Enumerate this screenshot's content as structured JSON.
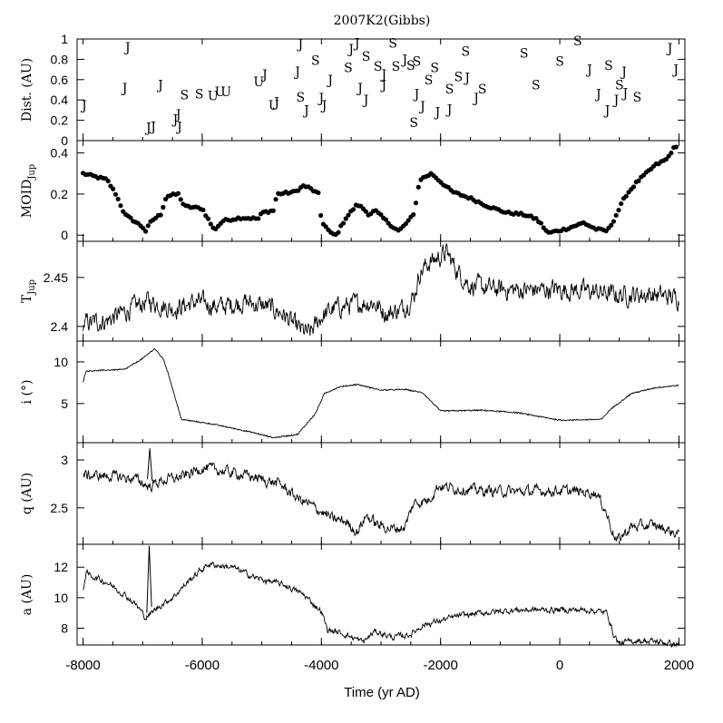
{
  "chart_data": [
    {
      "type": "scatter",
      "panel": "distance",
      "title": "2007K2(Gibbs)",
      "ylabel": "Dist. (AU)",
      "xlim": [
        -8100,
        2100
      ],
      "ylim": [
        0,
        1
      ],
      "yticks": [
        0,
        0.2,
        0.4,
        0.6,
        0.8,
        1
      ],
      "points": [
        {
          "x": -7980,
          "y": 0.35,
          "label": "J"
        },
        {
          "x": -7250,
          "y": 0.92,
          "label": "J"
        },
        {
          "x": -7300,
          "y": 0.52,
          "label": "J"
        },
        {
          "x": -6900,
          "y": 0.13,
          "label": "J"
        },
        {
          "x": -6820,
          "y": 0.14,
          "label": "J"
        },
        {
          "x": -6700,
          "y": 0.55,
          "label": "J"
        },
        {
          "x": -6450,
          "y": 0.21,
          "label": "J"
        },
        {
          "x": -6400,
          "y": 0.26,
          "label": "J"
        },
        {
          "x": -6380,
          "y": 0.14,
          "label": "J"
        },
        {
          "x": -6300,
          "y": 0.45,
          "label": "S"
        },
        {
          "x": -6050,
          "y": 0.46,
          "label": "S"
        },
        {
          "x": -5820,
          "y": 0.44,
          "label": "U"
        },
        {
          "x": -5700,
          "y": 0.48,
          "label": "U"
        },
        {
          "x": -5600,
          "y": 0.48,
          "label": "U"
        },
        {
          "x": -5050,
          "y": 0.58,
          "label": "U"
        },
        {
          "x": -4950,
          "y": 0.65,
          "label": "J"
        },
        {
          "x": -4800,
          "y": 0.35,
          "label": "U"
        },
        {
          "x": -4750,
          "y": 0.38,
          "label": "J"
        },
        {
          "x": -4350,
          "y": 0.95,
          "label": "J"
        },
        {
          "x": -4400,
          "y": 0.68,
          "label": "J"
        },
        {
          "x": -4350,
          "y": 0.43,
          "label": "S"
        },
        {
          "x": -4250,
          "y": 0.3,
          "label": "J"
        },
        {
          "x": -4100,
          "y": 0.79,
          "label": "S"
        },
        {
          "x": -4000,
          "y": 0.42,
          "label": "J"
        },
        {
          "x": -3950,
          "y": 0.35,
          "label": "J"
        },
        {
          "x": -3850,
          "y": 0.6,
          "label": "J"
        },
        {
          "x": -3550,
          "y": 0.72,
          "label": "S"
        },
        {
          "x": -3500,
          "y": 0.9,
          "label": "J"
        },
        {
          "x": -3400,
          "y": 0.96,
          "label": "J"
        },
        {
          "x": -3350,
          "y": 0.52,
          "label": "J"
        },
        {
          "x": -3250,
          "y": 0.4,
          "label": "J"
        },
        {
          "x": -3250,
          "y": 0.83,
          "label": "S"
        },
        {
          "x": -3050,
          "y": 0.73,
          "label": "S"
        },
        {
          "x": -2950,
          "y": 0.65,
          "label": "J"
        },
        {
          "x": -2950,
          "y": 0.55,
          "label": "J"
        },
        {
          "x": -2800,
          "y": 0.96,
          "label": "S"
        },
        {
          "x": -2750,
          "y": 0.73,
          "label": "S"
        },
        {
          "x": -2600,
          "y": 0.8,
          "label": "J"
        },
        {
          "x": -2500,
          "y": 0.74,
          "label": "S"
        },
        {
          "x": -2400,
          "y": 0.78,
          "label": "S"
        },
        {
          "x": -2450,
          "y": 0.18,
          "label": "S"
        },
        {
          "x": -2400,
          "y": 0.46,
          "label": "J"
        },
        {
          "x": -2300,
          "y": 0.34,
          "label": "J"
        },
        {
          "x": -2200,
          "y": 0.6,
          "label": "S"
        },
        {
          "x": -2100,
          "y": 0.72,
          "label": "S"
        },
        {
          "x": -2050,
          "y": 0.28,
          "label": "J"
        },
        {
          "x": -1850,
          "y": 0.51,
          "label": "S"
        },
        {
          "x": -1850,
          "y": 0.31,
          "label": "J"
        },
        {
          "x": -1700,
          "y": 0.63,
          "label": "S"
        },
        {
          "x": -1580,
          "y": 0.88,
          "label": "S"
        },
        {
          "x": -1550,
          "y": 0.62,
          "label": "J"
        },
        {
          "x": -1400,
          "y": 0.42,
          "label": "J"
        },
        {
          "x": -1300,
          "y": 0.51,
          "label": "S"
        },
        {
          "x": -600,
          "y": 0.86,
          "label": "S"
        },
        {
          "x": -400,
          "y": 0.55,
          "label": "S"
        },
        {
          "x": 0,
          "y": 0.78,
          "label": "S"
        },
        {
          "x": 300,
          "y": 0.98,
          "label": "S"
        },
        {
          "x": 500,
          "y": 0.7,
          "label": "J"
        },
        {
          "x": 650,
          "y": 0.46,
          "label": "J"
        },
        {
          "x": 800,
          "y": 0.3,
          "label": "J"
        },
        {
          "x": 820,
          "y": 0.74,
          "label": "S"
        },
        {
          "x": 950,
          "y": 0.4,
          "label": "J"
        },
        {
          "x": 1000,
          "y": 0.55,
          "label": "S"
        },
        {
          "x": 1100,
          "y": 0.47,
          "label": "J"
        },
        {
          "x": 1080,
          "y": 0.68,
          "label": "J"
        },
        {
          "x": 1300,
          "y": 0.43,
          "label": "S"
        },
        {
          "x": 1850,
          "y": 0.91,
          "label": "J"
        },
        {
          "x": 1950,
          "y": 0.7,
          "label": "J"
        }
      ]
    },
    {
      "type": "scatter",
      "panel": "moid",
      "ylabel": "MOID",
      "ylabel_sub": "Jup",
      "xlim": [
        -8100,
        2100
      ],
      "ylim": [
        -0.03,
        0.46
      ],
      "yticks": [
        0,
        0.2,
        0.4
      ],
      "knots": [
        [
          -8000,
          0.3
        ],
        [
          -7600,
          0.27
        ],
        [
          -7450,
          0.2
        ],
        [
          -7300,
          0.1
        ],
        [
          -7100,
          0.06
        ],
        [
          -7000,
          0.04
        ],
        [
          -6950,
          0.02
        ],
        [
          -6850,
          0.07
        ],
        [
          -6700,
          0.1
        ],
        [
          -6600,
          0.19
        ],
        [
          -6400,
          0.2
        ],
        [
          -6300,
          0.14
        ],
        [
          -6000,
          0.13
        ],
        [
          -5800,
          0.025
        ],
        [
          -5650,
          0.07
        ],
        [
          -5350,
          0.085
        ],
        [
          -5050,
          0.08
        ],
        [
          -5000,
          0.11
        ],
        [
          -4800,
          0.12
        ],
        [
          -4750,
          0.2
        ],
        [
          -4450,
          0.21
        ],
        [
          -4300,
          0.24
        ],
        [
          -4200,
          0.23
        ],
        [
          -4050,
          0.2
        ],
        [
          -4000,
          0.07
        ],
        [
          -3850,
          0.01
        ],
        [
          -3750,
          0.0
        ],
        [
          -3600,
          0.08
        ],
        [
          -3400,
          0.15
        ],
        [
          -3300,
          0.13
        ],
        [
          -3200,
          0.1
        ],
        [
          -3100,
          0.12
        ],
        [
          -2950,
          0.08
        ],
        [
          -2800,
          0.04
        ],
        [
          -2700,
          0.02
        ],
        [
          -2600,
          0.05
        ],
        [
          -2450,
          0.1
        ],
        [
          -2350,
          0.27
        ],
        [
          -2150,
          0.3
        ],
        [
          -2000,
          0.26
        ],
        [
          -1800,
          0.21
        ],
        [
          -1500,
          0.18
        ],
        [
          -1200,
          0.14
        ],
        [
          -900,
          0.11
        ],
        [
          -600,
          0.1
        ],
        [
          -400,
          0.08
        ],
        [
          -300,
          0.05
        ],
        [
          -200,
          0.01
        ],
        [
          100,
          0.03
        ],
        [
          400,
          0.06
        ],
        [
          600,
          0.03
        ],
        [
          800,
          0.02
        ],
        [
          900,
          0.07
        ],
        [
          1100,
          0.19
        ],
        [
          1300,
          0.26
        ],
        [
          1600,
          0.34
        ],
        [
          1800,
          0.37
        ],
        [
          1900,
          0.42
        ],
        [
          1990,
          0.43
        ]
      ]
    },
    {
      "type": "line",
      "panel": "tjup",
      "ylabel": "T",
      "ylabel_sub": "Jup",
      "xlim": [
        -8100,
        2100
      ],
      "ylim": [
        2.385,
        2.487
      ],
      "yticks": [
        2.4,
        2.45
      ],
      "knots": [
        [
          -8000,
          2.403
        ],
        [
          -7600,
          2.406
        ],
        [
          -7200,
          2.418
        ],
        [
          -6900,
          2.426
        ],
        [
          -6500,
          2.418
        ],
        [
          -6100,
          2.425
        ],
        [
          -5700,
          2.42
        ],
        [
          -5300,
          2.425
        ],
        [
          -4900,
          2.42
        ],
        [
          -4650,
          2.413
        ],
        [
          -4400,
          2.398
        ],
        [
          -4200,
          2.392
        ],
        [
          -4000,
          2.41
        ],
        [
          -3800,
          2.418
        ],
        [
          -3500,
          2.422
        ],
        [
          -3150,
          2.425
        ],
        [
          -2900,
          2.413
        ],
        [
          -2650,
          2.418
        ],
        [
          -2450,
          2.43
        ],
        [
          -2350,
          2.455
        ],
        [
          -2200,
          2.465
        ],
        [
          -1900,
          2.475
        ],
        [
          -1700,
          2.455
        ],
        [
          -1500,
          2.442
        ],
        [
          -1100,
          2.438
        ],
        [
          -600,
          2.437
        ],
        [
          0,
          2.438
        ],
        [
          500,
          2.436
        ],
        [
          1000,
          2.432
        ],
        [
          1500,
          2.433
        ],
        [
          2000,
          2.429
        ]
      ]
    },
    {
      "type": "line",
      "panel": "inclination",
      "ylabel": "i (°)",
      "xlim": [
        -8100,
        2100
      ],
      "ylim": [
        0.3,
        12.5
      ],
      "yticks": [
        5,
        10
      ],
      "knots": [
        [
          -8000,
          7.6
        ],
        [
          -7950,
          8.9
        ],
        [
          -7300,
          9.1
        ],
        [
          -7000,
          10.4
        ],
        [
          -6800,
          11.6
        ],
        [
          -6650,
          10.3
        ],
        [
          -6550,
          8.1
        ],
        [
          -6350,
          3.1
        ],
        [
          -5800,
          2.5
        ],
        [
          -5200,
          1.6
        ],
        [
          -4800,
          0.9
        ],
        [
          -4400,
          1.3
        ],
        [
          -4100,
          3.8
        ],
        [
          -3950,
          6.2
        ],
        [
          -3700,
          7.0
        ],
        [
          -3400,
          7.3
        ],
        [
          -3000,
          6.6
        ],
        [
          -2600,
          6.7
        ],
        [
          -2300,
          6.3
        ],
        [
          -2000,
          4.1
        ],
        [
          -1300,
          4.2
        ],
        [
          -700,
          3.9
        ],
        [
          0,
          3.0
        ],
        [
          700,
          3.1
        ],
        [
          850,
          4.3
        ],
        [
          1200,
          6.2
        ],
        [
          1600,
          6.9
        ],
        [
          2000,
          7.2
        ]
      ]
    },
    {
      "type": "line",
      "panel": "perihelion",
      "ylabel": "q (AU)",
      "xlim": [
        -8100,
        2100
      ],
      "ylim": [
        2.12,
        3.18
      ],
      "yticks": [
        2.5,
        3
      ],
      "knots": [
        [
          -8000,
          2.84
        ],
        [
          -7500,
          2.83
        ],
        [
          -7100,
          2.8
        ],
        [
          -6900,
          2.72
        ],
        [
          -6700,
          2.78
        ],
        [
          -6300,
          2.83
        ],
        [
          -6000,
          2.92
        ],
        [
          -5600,
          2.88
        ],
        [
          -5200,
          2.83
        ],
        [
          -4900,
          2.78
        ],
        [
          -4700,
          2.75
        ],
        [
          -4400,
          2.6
        ],
        [
          -4100,
          2.5
        ],
        [
          -3800,
          2.38
        ],
        [
          -3600,
          2.36
        ],
        [
          -3400,
          2.25
        ],
        [
          -3250,
          2.42
        ],
        [
          -3050,
          2.32
        ],
        [
          -2800,
          2.28
        ],
        [
          -2600,
          2.3
        ],
        [
          -2450,
          2.55
        ],
        [
          -2200,
          2.58
        ],
        [
          -2050,
          2.73
        ],
        [
          -1700,
          2.7
        ],
        [
          -1300,
          2.68
        ],
        [
          -700,
          2.67
        ],
        [
          0,
          2.68
        ],
        [
          600,
          2.66
        ],
        [
          750,
          2.5
        ],
        [
          950,
          2.15
        ],
        [
          1200,
          2.3
        ],
        [
          1600,
          2.32
        ],
        [
          2000,
          2.22
        ]
      ]
    },
    {
      "type": "line",
      "panel": "semimajor",
      "ylabel": "a (AU)",
      "xlabel": "Time (yr AD)",
      "xlim": [
        -8100,
        2100
      ],
      "xticks": [
        -8000,
        -6000,
        -4000,
        -2000,
        0,
        2000
      ],
      "xtick_labels": [
        "-8000",
        "-6000",
        "-4000",
        "-2000",
        "0",
        "2000"
      ],
      "ylim": [
        6.9,
        13.5
      ],
      "yticks": [
        8,
        10,
        12
      ],
      "knots": [
        [
          -8000,
          10.6
        ],
        [
          -7950,
          11.6
        ],
        [
          -7600,
          11.0
        ],
        [
          -7300,
          10.2
        ],
        [
          -7100,
          9.5
        ],
        [
          -6950,
          8.7
        ],
        [
          -6850,
          9.0
        ],
        [
          -6700,
          9.5
        ],
        [
          -6500,
          10.0
        ],
        [
          -6200,
          11.2
        ],
        [
          -5900,
          12.2
        ],
        [
          -5500,
          12.0
        ],
        [
          -5100,
          11.3
        ],
        [
          -4600,
          10.8
        ],
        [
          -4300,
          10.2
        ],
        [
          -4000,
          9.1
        ],
        [
          -3900,
          7.9
        ],
        [
          -3600,
          7.6
        ],
        [
          -3300,
          7.1
        ],
        [
          -3100,
          7.8
        ],
        [
          -2800,
          7.4
        ],
        [
          -2500,
          7.6
        ],
        [
          -2300,
          8.2
        ],
        [
          -2000,
          8.5
        ],
        [
          -1700,
          8.8
        ],
        [
          -1300,
          9.0
        ],
        [
          -700,
          9.2
        ],
        [
          0,
          9.2
        ],
        [
          500,
          9.2
        ],
        [
          800,
          9.0
        ],
        [
          900,
          7.6
        ],
        [
          1000,
          7.0
        ],
        [
          1300,
          7.2
        ],
        [
          1700,
          7.1
        ],
        [
          2000,
          6.9
        ]
      ],
      "spikes": [
        [
          -6900,
          13.2
        ],
        [
          -6900,
          13.4
        ]
      ]
    }
  ]
}
